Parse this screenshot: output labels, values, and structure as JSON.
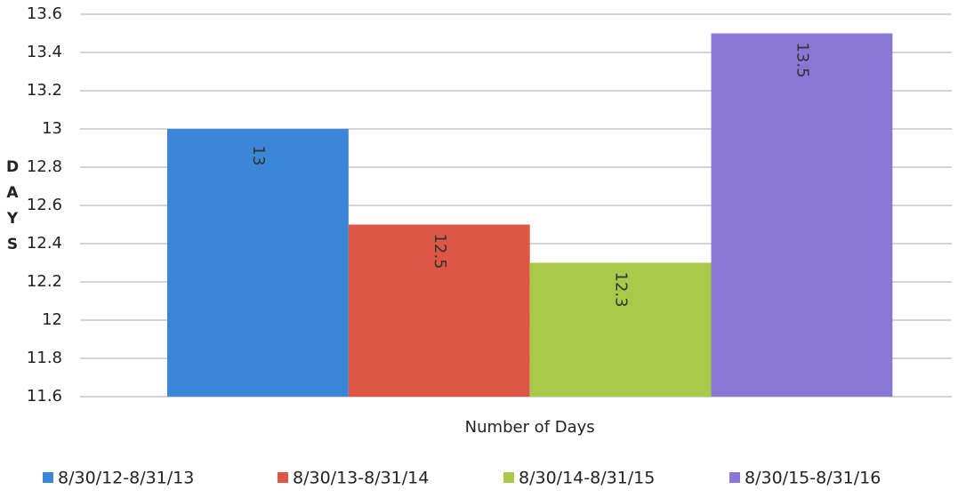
{
  "chart_data": {
    "type": "bar",
    "categories": [
      "Number of Days"
    ],
    "y_label": "DAYS",
    "series": [
      {
        "name": "8/30/12-8/31/13",
        "color": "#3b86d6",
        "values": [
          13
        ]
      },
      {
        "name": "8/30/13-8/31/14",
        "color": "#dd5646",
        "values": [
          12.5
        ]
      },
      {
        "name": "8/30/14-8/31/15",
        "color": "#a8c94a",
        "values": [
          12.3
        ]
      },
      {
        "name": "8/30/15-8/31/16",
        "color": "#8977d6",
        "values": [
          13.5
        ]
      }
    ],
    "ylim": [
      11.6,
      13.6
    ],
    "yticks": [
      11.6,
      11.8,
      12,
      12.2,
      12.4,
      12.6,
      12.8,
      13,
      13.2,
      13.4,
      13.6
    ],
    "grid": true,
    "legend": "bottom"
  }
}
